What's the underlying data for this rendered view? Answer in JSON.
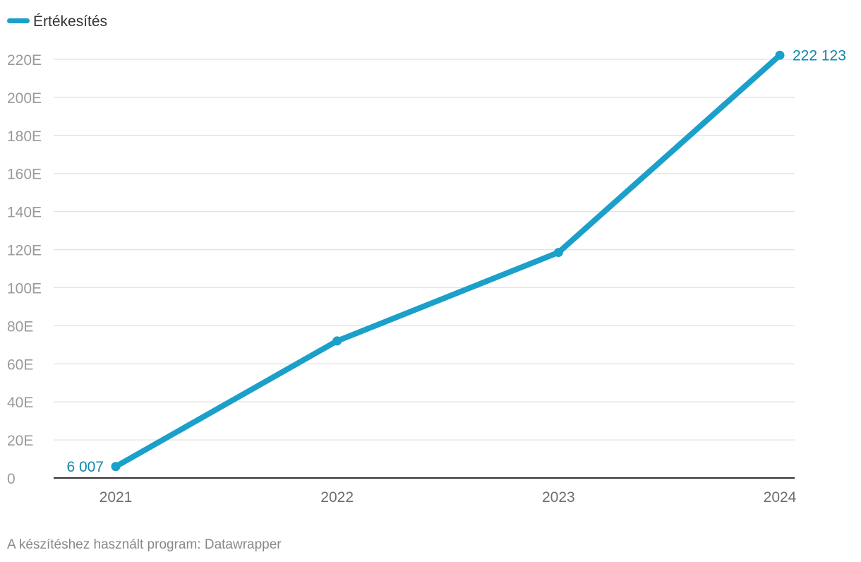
{
  "chart_data": {
    "type": "line",
    "x": [
      "2021",
      "2022",
      "2023",
      "2024"
    ],
    "series": [
      {
        "name": "Értékesítés",
        "values": [
          6007,
          72000,
          118500,
          222123
        ]
      }
    ],
    "ylim": [
      0,
      220000
    ],
    "y_ticks": [
      0,
      20000,
      40000,
      60000,
      80000,
      100000,
      120000,
      140000,
      160000,
      180000,
      200000,
      220000
    ],
    "y_tick_labels": [
      "0",
      "20E",
      "40E",
      "60E",
      "80E",
      "100E",
      "120E",
      "140E",
      "160E",
      "180E",
      "200E",
      "220E"
    ],
    "data_labels": [
      {
        "index": 0,
        "text": "6 007"
      },
      {
        "index": 3,
        "text": "222 123"
      }
    ],
    "legend_position": "top-left",
    "grid": true,
    "line_color": "#1aa0c9",
    "label_color": "#1287a8",
    "gridline_color": "#e2e2e2"
  },
  "footer": {
    "credit": "A készítéshez használt program: Datawrapper"
  }
}
